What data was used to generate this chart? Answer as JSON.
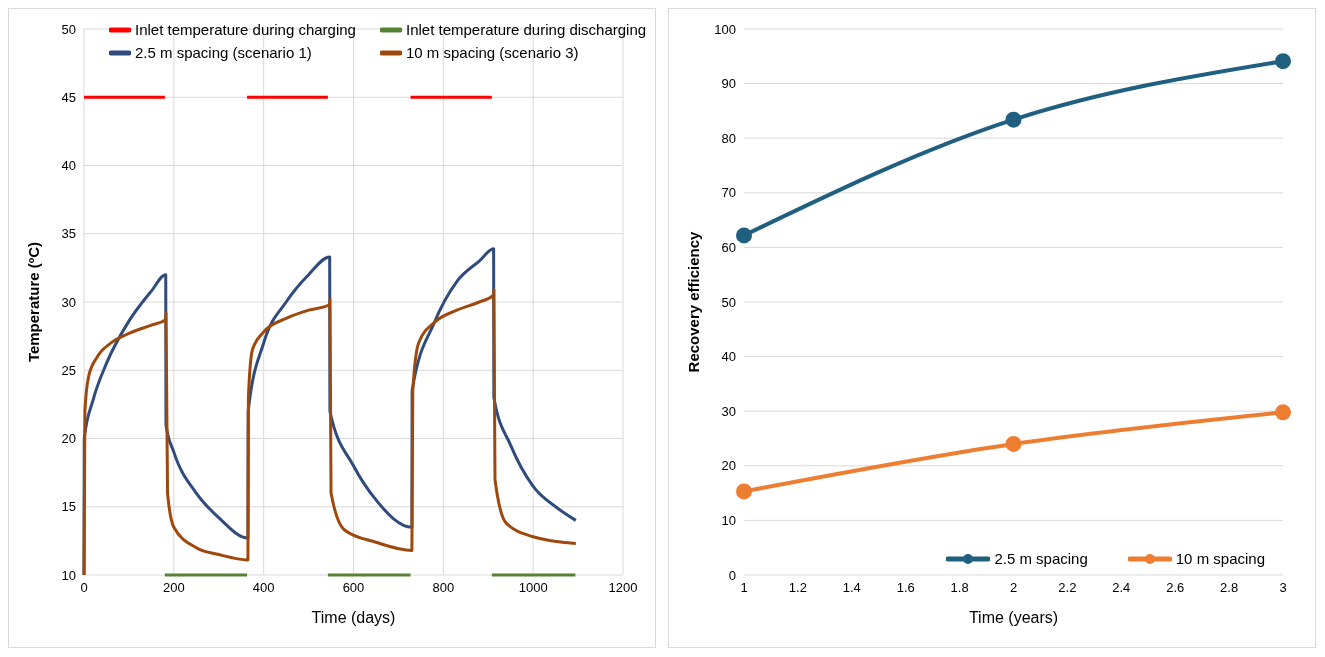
{
  "chart_data": [
    {
      "type": "line",
      "xlabel": "Time (days)",
      "ylabel": "Temperature (ºC)",
      "xlim": [
        0,
        1200
      ],
      "xticks": [
        0,
        200,
        400,
        600,
        800,
        1000,
        1200
      ],
      "ylim": [
        10,
        50
      ],
      "yticks": [
        10,
        15,
        20,
        25,
        30,
        35,
        40,
        45,
        50
      ],
      "grid": true,
      "legend": "top",
      "marker": "none",
      "line_style": "solid",
      "series": [
        {
          "name": "Inlet temperature during charging",
          "color": "#ff0000",
          "x": [
            0,
            180,
            270,
            363,
            543,
            635,
            727,
            908
          ],
          "values": [
            45,
            45,
            null,
            45,
            45,
            null,
            45,
            45
          ]
        },
        {
          "name": "Inlet temperature during discharging",
          "color": "#548235",
          "x": [
            180,
            363,
            450,
            543,
            727,
            820,
            908,
            1094
          ],
          "values": [
            10,
            10,
            null,
            10,
            10,
            null,
            10,
            10
          ]
        },
        {
          "name": "2.5 m spacing (scenario 1)",
          "color": "#2f4b7c",
          "x": [
            0,
            0.5,
            20,
            50,
            100,
            150,
            182,
            182.5,
            200,
            250,
            300,
            365,
            365.5,
            400,
            450,
            500,
            547,
            547.5,
            600,
            650,
            730,
            730.5,
            780,
            830,
            880,
            912,
            912.5,
            950,
            1000,
            1050,
            1095
          ],
          "values": [
            10,
            20,
            22.8,
            25.5,
            28.6,
            30.8,
            32,
            21,
            19,
            16,
            14.2,
            12.7,
            22,
            27,
            30,
            32,
            33.3,
            22,
            18,
            15.5,
            13.5,
            23.5,
            28.5,
            31.5,
            33,
            33.9,
            23,
            19.5,
            16.5,
            15,
            14
          ]
        },
        {
          "name": "10 m spacing (scenario 3)",
          "color": "#9e480e",
          "x": [
            0,
            2,
            10,
            30,
            60,
            100,
            150,
            182,
            182.5,
            186,
            200,
            250,
            300,
            365,
            366,
            375,
            400,
            450,
            500,
            547,
            547.5,
            550,
            580,
            650,
            730,
            732,
            745,
            780,
            830,
            880,
            912,
            912.5,
            915,
            940,
            1000,
            1095
          ],
          "values": [
            10,
            22,
            24.5,
            26,
            27,
            27.7,
            28.3,
            28.7,
            29.2,
            16,
            13.5,
            12,
            11.5,
            11.1,
            23,
            26.5,
            27.8,
            28.8,
            29.4,
            29.8,
            30.2,
            16,
            13.3,
            12.4,
            11.8,
            23.5,
            27,
            28.5,
            29.4,
            30,
            30.5,
            30.9,
            17,
            13.8,
            12.8,
            12.3
          ]
        }
      ]
    },
    {
      "type": "line",
      "xlabel": "Time (years)",
      "ylabel": "Recovery efficiency",
      "x": [
        1,
        2,
        3
      ],
      "xlim": [
        1,
        3
      ],
      "xticks": [
        1,
        1.2,
        1.4,
        1.6,
        1.8,
        2,
        2.2,
        2.4,
        2.6,
        2.8,
        3
      ],
      "ylim": [
        0,
        100
      ],
      "yticks": [
        0,
        10,
        20,
        30,
        40,
        50,
        60,
        70,
        80,
        90,
        100
      ],
      "grid": "y",
      "legend": "bottom right",
      "marker": "circle",
      "line_style": "solid",
      "series": [
        {
          "name": "2.5 m spacing",
          "color": "#1f5f7f",
          "values": [
            62.2,
            83.4,
            94.1
          ]
        },
        {
          "name": "10 m spacing",
          "color": "#ed7d31",
          "values": [
            15.3,
            24.0,
            29.8
          ]
        }
      ]
    }
  ]
}
